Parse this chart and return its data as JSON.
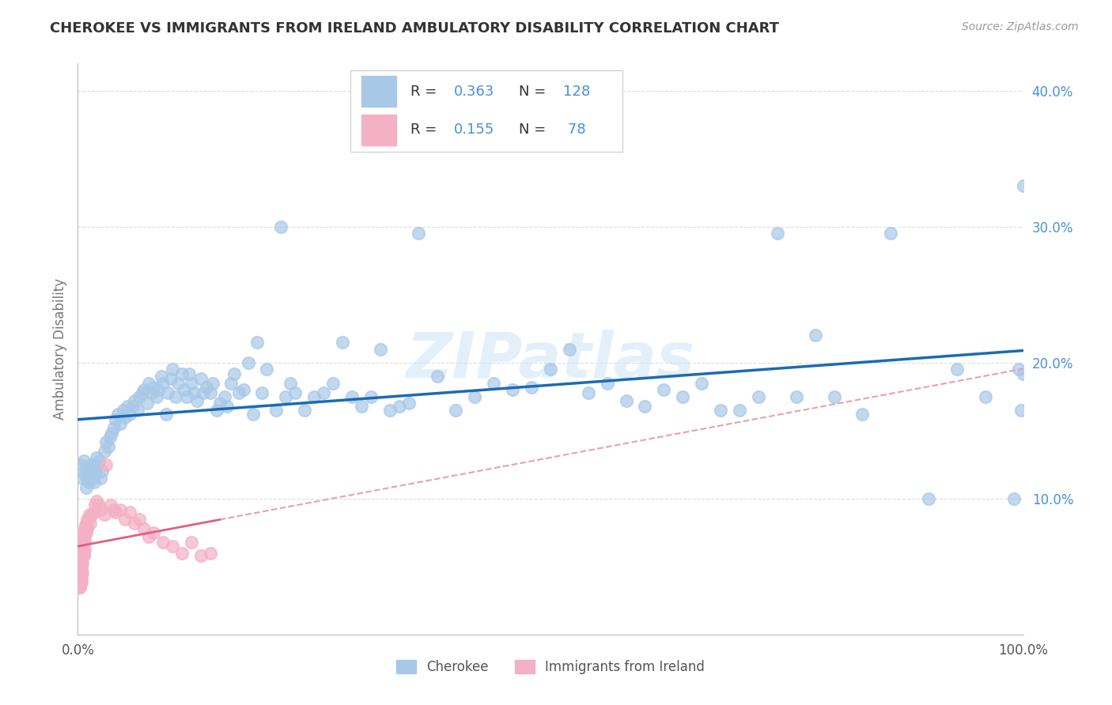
{
  "title": "CHEROKEE VS IMMIGRANTS FROM IRELAND AMBULATORY DISABILITY CORRELATION CHART",
  "source": "Source: ZipAtlas.com",
  "ylabel": "Ambulatory Disability",
  "watermark": "ZIPatlas",
  "xlim": [
    0,
    1.0
  ],
  "ylim": [
    0,
    0.42
  ],
  "xticks": [
    0.0,
    0.25,
    0.5,
    0.75,
    1.0
  ],
  "xticklabels": [
    "0.0%",
    "",
    "",
    "",
    "100.0%"
  ],
  "yticks": [
    0.0,
    0.1,
    0.2,
    0.3,
    0.4
  ],
  "yticklabels": [
    "",
    "10.0%",
    "20.0%",
    "30.0%",
    "40.0%"
  ],
  "cherokee_R": 0.363,
  "cherokee_N": 128,
  "ireland_R": 0.155,
  "ireland_N": 78,
  "cherokee_color": "#a8c8e8",
  "cherokee_line_color": "#1a6bb5",
  "ireland_color": "#f4b0c5",
  "ireland_line_color": "#e06080",
  "ireland_dash_color": "#e8a0b0",
  "background_color": "#ffffff",
  "grid_color": "#cccccc",
  "title_color": "#333333",
  "R_N_color": "#4a90d9",
  "legend_label_cherokee": "Cherokee",
  "legend_label_ireland": "Immigrants from Ireland",
  "cherokee_x": [
    0.003,
    0.005,
    0.006,
    0.007,
    0.008,
    0.009,
    0.01,
    0.011,
    0.012,
    0.013,
    0.014,
    0.015,
    0.016,
    0.017,
    0.018,
    0.019,
    0.02,
    0.022,
    0.024,
    0.026,
    0.028,
    0.03,
    0.032,
    0.034,
    0.036,
    0.038,
    0.04,
    0.042,
    0.045,
    0.048,
    0.05,
    0.052,
    0.055,
    0.058,
    0.06,
    0.063,
    0.065,
    0.068,
    0.07,
    0.073,
    0.075,
    0.078,
    0.08,
    0.083,
    0.085,
    0.088,
    0.09,
    0.093,
    0.095,
    0.098,
    0.1,
    0.103,
    0.106,
    0.11,
    0.113,
    0.115,
    0.118,
    0.12,
    0.123,
    0.126,
    0.13,
    0.133,
    0.136,
    0.14,
    0.143,
    0.147,
    0.15,
    0.155,
    0.158,
    0.162,
    0.165,
    0.17,
    0.175,
    0.18,
    0.185,
    0.19,
    0.195,
    0.2,
    0.21,
    0.215,
    0.22,
    0.225,
    0.23,
    0.24,
    0.25,
    0.26,
    0.27,
    0.28,
    0.29,
    0.3,
    0.31,
    0.32,
    0.33,
    0.34,
    0.35,
    0.36,
    0.38,
    0.4,
    0.42,
    0.44,
    0.46,
    0.48,
    0.5,
    0.52,
    0.54,
    0.56,
    0.58,
    0.6,
    0.62,
    0.64,
    0.66,
    0.68,
    0.7,
    0.72,
    0.74,
    0.76,
    0.78,
    0.8,
    0.83,
    0.86,
    0.9,
    0.93,
    0.96,
    0.99,
    0.995,
    0.998,
    1.0,
    1.0
  ],
  "cherokee_y": [
    0.125,
    0.115,
    0.128,
    0.118,
    0.122,
    0.108,
    0.115,
    0.112,
    0.12,
    0.118,
    0.125,
    0.115,
    0.125,
    0.112,
    0.118,
    0.122,
    0.13,
    0.128,
    0.115,
    0.12,
    0.135,
    0.142,
    0.138,
    0.145,
    0.148,
    0.152,
    0.158,
    0.162,
    0.155,
    0.165,
    0.16,
    0.168,
    0.162,
    0.168,
    0.172,
    0.165,
    0.175,
    0.178,
    0.18,
    0.17,
    0.185,
    0.178,
    0.182,
    0.175,
    0.18,
    0.19,
    0.185,
    0.162,
    0.178,
    0.188,
    0.195,
    0.175,
    0.185,
    0.192,
    0.18,
    0.175,
    0.192,
    0.185,
    0.178,
    0.172,
    0.188,
    0.178,
    0.182,
    0.178,
    0.185,
    0.165,
    0.17,
    0.175,
    0.168,
    0.185,
    0.192,
    0.178,
    0.18,
    0.2,
    0.162,
    0.215,
    0.178,
    0.195,
    0.165,
    0.3,
    0.175,
    0.185,
    0.178,
    0.165,
    0.175,
    0.178,
    0.185,
    0.215,
    0.175,
    0.168,
    0.175,
    0.21,
    0.165,
    0.168,
    0.17,
    0.295,
    0.19,
    0.165,
    0.175,
    0.185,
    0.18,
    0.182,
    0.195,
    0.21,
    0.178,
    0.185,
    0.172,
    0.168,
    0.18,
    0.175,
    0.185,
    0.165,
    0.165,
    0.175,
    0.295,
    0.175,
    0.22,
    0.175,
    0.162,
    0.295,
    0.1,
    0.195,
    0.175,
    0.1,
    0.195,
    0.165,
    0.192,
    0.33
  ],
  "ireland_x": [
    0.001,
    0.001,
    0.001,
    0.001,
    0.001,
    0.002,
    0.002,
    0.002,
    0.002,
    0.002,
    0.002,
    0.002,
    0.003,
    0.003,
    0.003,
    0.003,
    0.003,
    0.003,
    0.003,
    0.003,
    0.004,
    0.004,
    0.004,
    0.004,
    0.004,
    0.004,
    0.004,
    0.004,
    0.004,
    0.004,
    0.005,
    0.005,
    0.005,
    0.005,
    0.005,
    0.005,
    0.006,
    0.006,
    0.006,
    0.006,
    0.007,
    0.007,
    0.007,
    0.007,
    0.008,
    0.008,
    0.009,
    0.009,
    0.01,
    0.01,
    0.011,
    0.012,
    0.013,
    0.015,
    0.017,
    0.018,
    0.02,
    0.022,
    0.025,
    0.028,
    0.03,
    0.035,
    0.038,
    0.04,
    0.045,
    0.05,
    0.055,
    0.06,
    0.065,
    0.07,
    0.075,
    0.08,
    0.09,
    0.1,
    0.11,
    0.12,
    0.13,
    0.14
  ],
  "ireland_y": [
    0.05,
    0.042,
    0.06,
    0.035,
    0.055,
    0.068,
    0.048,
    0.06,
    0.042,
    0.055,
    0.035,
    0.065,
    0.055,
    0.045,
    0.062,
    0.04,
    0.058,
    0.048,
    0.065,
    0.038,
    0.06,
    0.05,
    0.055,
    0.042,
    0.068,
    0.048,
    0.065,
    0.038,
    0.055,
    0.07,
    0.062,
    0.052,
    0.068,
    0.045,
    0.072,
    0.058,
    0.075,
    0.058,
    0.065,
    0.06,
    0.078,
    0.068,
    0.062,
    0.072,
    0.08,
    0.075,
    0.082,
    0.075,
    0.085,
    0.078,
    0.085,
    0.088,
    0.082,
    0.088,
    0.09,
    0.095,
    0.098,
    0.095,
    0.092,
    0.088,
    0.125,
    0.095,
    0.092,
    0.09,
    0.092,
    0.085,
    0.09,
    0.082,
    0.085,
    0.078,
    0.072,
    0.075,
    0.068,
    0.065,
    0.06,
    0.068,
    0.058,
    0.06
  ]
}
